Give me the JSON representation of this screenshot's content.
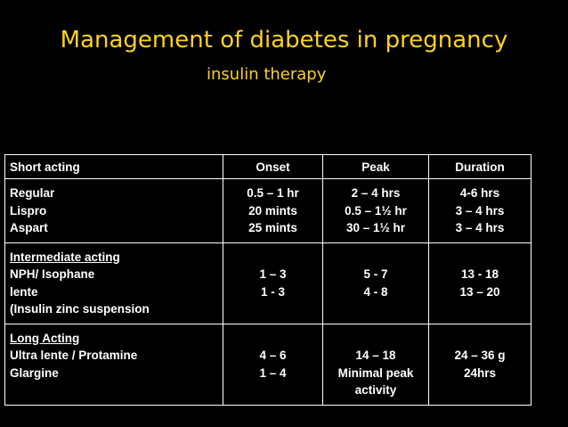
{
  "slide": {
    "title": "Management of diabetes in pregnancy",
    "subtitle": "insulin therapy"
  },
  "table": {
    "headers": [
      "Short acting",
      "Onset",
      "Peak",
      "Duration"
    ],
    "short": {
      "names": [
        "Regular",
        "Lispro",
        "Aspart"
      ],
      "onset": [
        "0.5 – 1 hr",
        "20 mints",
        "25 mints"
      ],
      "peak": [
        "2 – 4 hrs",
        "0.5 – 1½ hr",
        "30 – 1½ hr"
      ],
      "duration": [
        "4-6 hrs",
        "3 – 4 hrs",
        "3 – 4 hrs"
      ]
    },
    "intermediate": {
      "heading": "Intermediate acting",
      "names": [
        "NPH/ Isophane",
        "lente",
        "(Insulin zinc suspension"
      ],
      "onset": [
        "1 – 3",
        "1 - 3"
      ],
      "peak": [
        "5 - 7",
        "4 - 8"
      ],
      "duration": [
        "13 - 18",
        "13 – 20"
      ]
    },
    "long": {
      "heading": "Long Acting",
      "names": [
        "Ultra lente / Protamine",
        "Glargine"
      ],
      "onset": [
        "4 – 6",
        "1 – 4"
      ],
      "peak": [
        "14 – 18",
        "Minimal peak",
        "activity"
      ],
      "duration": [
        "24 – 36 g",
        "24hrs"
      ]
    }
  }
}
